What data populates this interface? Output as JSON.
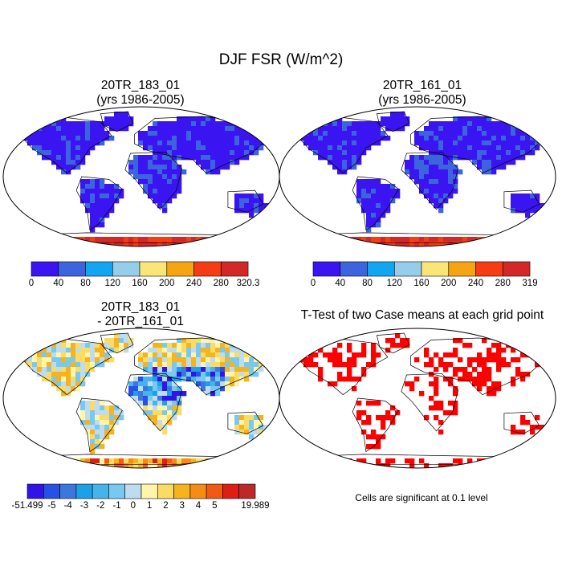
{
  "main_title": "DJF FSR (W/m^2)",
  "panels": [
    {
      "title_line1": "20TR_183_01",
      "title_line2": "(yrs 1986-2005)"
    },
    {
      "title_line1": "20TR_161_01",
      "title_line2": "(yrs 1986-2005)"
    },
    {
      "title_line1": "20TR_183_01",
      "title_line2": "- 20TR_161_01"
    },
    {
      "title_line1": "T-Test of two Case means at each grid point",
      "title_line2": ""
    }
  ],
  "footnote": "Cells are significant at 0.1 level",
  "chart_data": [
    {
      "type": "heatmap",
      "title": "20TR_183_01 (yrs 1986-2005)",
      "projection": "robinson",
      "colorbar": {
        "colors": [
          "#3b14f2",
          "#3c64dc",
          "#14a5f0",
          "#96cdeb",
          "#fae678",
          "#f5a514",
          "#f53c14",
          "#d22828"
        ],
        "ticks": [
          "0",
          "40",
          "80",
          "120",
          "160",
          "200",
          "240",
          "280",
          "320.3"
        ]
      }
    },
    {
      "type": "heatmap",
      "title": "20TR_161_01 (yrs 1986-2005)",
      "projection": "robinson",
      "colorbar": {
        "colors": [
          "#3b14f2",
          "#3c64dc",
          "#14a5f0",
          "#96cdeb",
          "#fae678",
          "#f5a514",
          "#f53c14",
          "#d22828"
        ],
        "ticks": [
          "0",
          "40",
          "80",
          "120",
          "160",
          "200",
          "240",
          "280",
          "319"
        ]
      }
    },
    {
      "type": "heatmap",
      "title": "20TR_183_01 - 20TR_161_01",
      "projection": "robinson",
      "colorbar": {
        "colors": [
          "#3214e6",
          "#2850e6",
          "#3c78dc",
          "#1ea0e6",
          "#46b4eb",
          "#78c8f0",
          "#bedcf0",
          "#fff5aa",
          "#fadc64",
          "#f5b41e",
          "#f58c14",
          "#f05a14",
          "#dc1e14",
          "#be2828"
        ],
        "ticks": [
          "-51.499",
          "-5",
          "-4",
          "-3",
          "-2",
          "-1",
          "0",
          "1",
          "2",
          "3",
          "4",
          "5",
          "19.989"
        ]
      }
    },
    {
      "type": "heatmap",
      "title": "T-Test of two Case means at each grid point",
      "projection": "robinson",
      "significance_color": "#ff0000",
      "significance_level": 0.1
    }
  ]
}
